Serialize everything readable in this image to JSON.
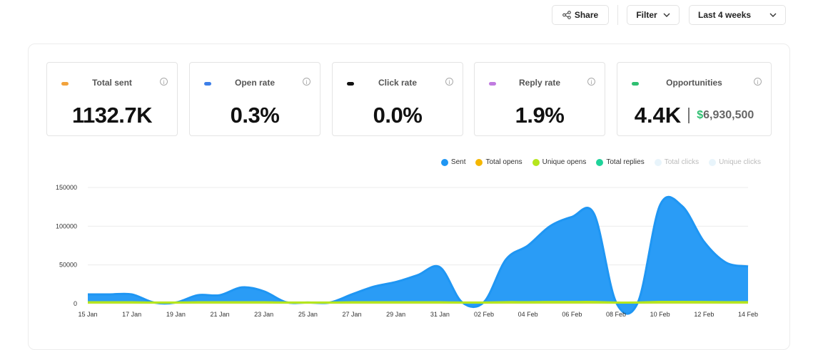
{
  "toolbar": {
    "share_label": "Share",
    "filter_label": "Filter",
    "range_label": "Last 4 weeks"
  },
  "cards": [
    {
      "label": "Total sent",
      "value": "1132.7K",
      "color": "#f2a33c"
    },
    {
      "label": "Open rate",
      "value": "0.3%",
      "color": "#3d7fe8"
    },
    {
      "label": "Click rate",
      "value": "0.0%",
      "color": "#111111"
    },
    {
      "label": "Reply rate",
      "value": "1.9%",
      "color": "#c07be0"
    },
    {
      "label": "Opportunities",
      "value": "4.4K",
      "money_symbol": "$",
      "money": "6,930,500",
      "color": "#2fbf71"
    }
  ],
  "info_glyph": "i",
  "chart_data": {
    "type": "area",
    "legend": [
      {
        "name": "Sent",
        "color": "#1f96f3",
        "active": true
      },
      {
        "name": "Total opens",
        "color": "#f5b700",
        "active": true
      },
      {
        "name": "Unique opens",
        "color": "#b5e61d",
        "active": true
      },
      {
        "name": "Total replies",
        "color": "#1fd39a",
        "active": true
      },
      {
        "name": "Total clicks",
        "color": "#e8f4fb",
        "active": false
      },
      {
        "name": "Unique clicks",
        "color": "#e8f4fb",
        "active": false
      }
    ],
    "x_ticks": [
      "15 Jan",
      "17 Jan",
      "19 Jan",
      "21 Jan",
      "23 Jan",
      "25 Jan",
      "27 Jan",
      "29 Jan",
      "31 Jan",
      "02 Feb",
      "04 Feb",
      "06 Feb",
      "08 Feb",
      "10 Feb",
      "12 Feb",
      "14 Feb"
    ],
    "y_ticks": [
      0,
      50000,
      100000,
      150000
    ],
    "ylim": [
      0,
      150000
    ],
    "x": [
      "15 Jan",
      "16 Jan",
      "17 Jan",
      "18 Jan",
      "19 Jan",
      "20 Jan",
      "21 Jan",
      "22 Jan",
      "23 Jan",
      "24 Jan",
      "25 Jan",
      "26 Jan",
      "27 Jan",
      "28 Jan",
      "29 Jan",
      "30 Jan",
      "31 Jan",
      "01 Feb",
      "02 Feb",
      "03 Feb",
      "04 Feb",
      "05 Feb",
      "06 Feb",
      "07 Feb",
      "08 Feb",
      "09 Feb",
      "10 Feb",
      "11 Feb",
      "12 Feb",
      "13 Feb",
      "14 Feb"
    ],
    "series": [
      {
        "name": "Sent",
        "values": [
          12000,
          12000,
          12000,
          1500,
          1500,
          11000,
          11000,
          21000,
          16000,
          2000,
          1500,
          1500,
          12000,
          22000,
          28000,
          37000,
          47000,
          2000,
          2000,
          57000,
          75000,
          100000,
          112000,
          116000,
          2000,
          2000,
          127000,
          126000,
          80000,
          53000,
          48000
        ]
      },
      {
        "name": "Unique opens",
        "values": [
          1800,
          1800,
          1800,
          1500,
          1500,
          1800,
          1800,
          1800,
          1800,
          1500,
          1500,
          1500,
          1800,
          1800,
          1800,
          1800,
          1800,
          1500,
          1500,
          2000,
          2000,
          2200,
          2200,
          2200,
          1500,
          1500,
          2300,
          2300,
          2200,
          2000,
          2000
        ]
      }
    ]
  }
}
